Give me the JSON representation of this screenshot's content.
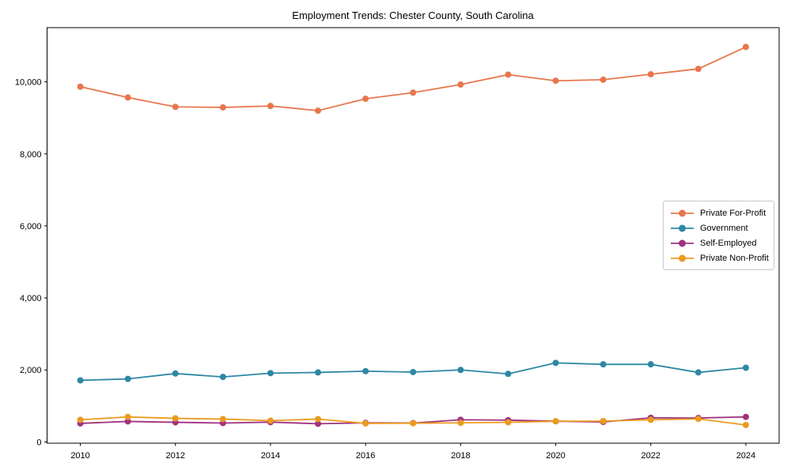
{
  "chart_data": {
    "type": "line",
    "title": "Employment Trends: Chester County, South Carolina",
    "xlabel": "",
    "ylabel": "",
    "x": [
      2010,
      2011,
      2012,
      2013,
      2014,
      2015,
      2016,
      2017,
      2018,
      2019,
      2020,
      2021,
      2022,
      2023,
      2024
    ],
    "series": [
      {
        "name": "Private For-Profit",
        "color": "#e8764d",
        "values": [
          9865,
          9565,
          9305,
          9290,
          9330,
          9200,
          9530,
          9700,
          9925,
          10200,
          10030,
          10060,
          10210,
          10360,
          10970
        ]
      },
      {
        "name": "Government",
        "color": "#2e87a5",
        "values": [
          1710,
          1750,
          1900,
          1805,
          1910,
          1930,
          1965,
          1940,
          2000,
          1890,
          2195,
          2155,
          2155,
          1930,
          2060
        ]
      },
      {
        "name": "Self-Employed",
        "color": "#a1327f",
        "values": [
          515,
          570,
          545,
          525,
          550,
          505,
          530,
          525,
          615,
          605,
          575,
          555,
          670,
          665,
          695
        ]
      },
      {
        "name": "Private Non-Profit",
        "color": "#eb9b1f",
        "values": [
          615,
          695,
          655,
          635,
          590,
          635,
          515,
          520,
          530,
          545,
          575,
          580,
          615,
          640,
          470
        ]
      }
    ],
    "xticks": [
      2010,
      2012,
      2014,
      2016,
      2018,
      2020,
      2022,
      2024
    ],
    "yticks": [
      0,
      2000,
      4000,
      6000,
      8000,
      10000
    ],
    "ytick_labels": [
      "0",
      "2,000",
      "4,000",
      "6,000",
      "8,000",
      "10,000"
    ],
    "xlim": [
      2009.3,
      2024.7
    ],
    "ylim": [
      -35,
      11505
    ],
    "grid": false,
    "legend_position": "middle-right",
    "marker": "circle"
  }
}
